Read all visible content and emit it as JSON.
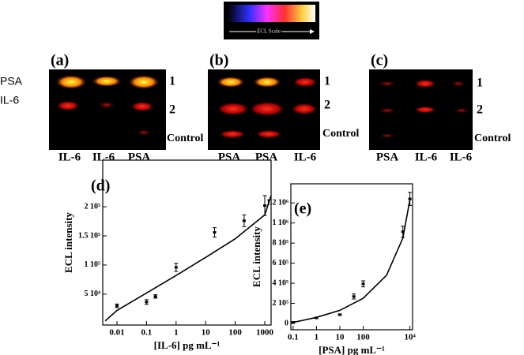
{
  "scale_label": "ECL Scale",
  "left_labels": [
    "PSA",
    "IL-6"
  ],
  "gels": [
    {
      "label": "(a)",
      "lanes": [
        "IL-6",
        "IL-6",
        "PSA"
      ],
      "rows": [
        "1",
        "2",
        "Control"
      ]
    },
    {
      "label": "(b)",
      "lanes": [
        "PSA",
        "PSA",
        "IL-6"
      ],
      "rows": [
        "1",
        "2",
        "Control"
      ]
    },
    {
      "label": "(c)",
      "lanes": [
        "PSA",
        "IL-6",
        "IL-6"
      ],
      "rows": [
        "1",
        "2",
        "Control"
      ]
    }
  ],
  "chart_data": [
    {
      "type": "scatter",
      "panel_label": "(d)",
      "x_label": "[IL-6] pg mL⁻¹",
      "y_label": "ECL intensity",
      "log_x": true,
      "xlim": [
        0.0033,
        1634
      ],
      "xticks": [
        0.01,
        0.1,
        1,
        10,
        100,
        1000
      ],
      "ylim": [
        -3000,
        280000
      ],
      "yticks": [
        {
          "value": 50000,
          "label": "5 10⁴"
        },
        {
          "value": 100000,
          "label": "1 10⁵"
        },
        {
          "value": 150000,
          "label": "1.5 10⁵"
        },
        {
          "value": 200000,
          "label": "2 10⁵"
        }
      ],
      "x": [
        0.01,
        0.1,
        0.2,
        1,
        20,
        200,
        1000
      ],
      "values": [
        30000,
        36500,
        46000,
        96000,
        156000,
        176000,
        202000
      ],
      "errors": [
        3000,
        4000,
        3000,
        7000,
        8000,
        10000,
        17000
      ],
      "fit": {
        "x": [
          0.004,
          0.01,
          0.1,
          1,
          10,
          100,
          1000,
          1634
        ],
        "values": [
          4000,
          22000,
          52000,
          82000,
          113000,
          145000,
          186000,
          219000
        ]
      },
      "color": "#000000"
    },
    {
      "type": "scatter",
      "panel_label": "(e)",
      "x_label": "[PSA] pg mL⁻¹",
      "y_label": "ECL intensity",
      "log_x": true,
      "xlim": [
        0.08,
        13000
      ],
      "xticks": [
        0.1,
        1,
        10,
        100,
        {
          "value": 10000,
          "label": "10⁴"
        }
      ],
      "ylim": [
        -63000,
        1390000
      ],
      "yticks": [
        0,
        {
          "value": 200000,
          "label": "2 10⁵"
        },
        {
          "value": 400000,
          "label": "4 10⁵"
        },
        {
          "value": 600000,
          "label": "6 10⁵"
        },
        {
          "value": 800000,
          "label": "8 10⁵"
        },
        {
          "value": 1000000,
          "label": "1 10⁶"
        },
        {
          "value": 1200000,
          "label": "1.2 10⁶"
        }
      ],
      "x": [
        0.1,
        1,
        10,
        40,
        100,
        5000,
        10000
      ],
      "values": [
        10000,
        55000,
        87000,
        268000,
        394000,
        913000,
        1240000
      ],
      "errors": [
        8000,
        8000,
        8000,
        25000,
        30000,
        55000,
        65000
      ],
      "fit": {
        "x": [
          0.1,
          1,
          10,
          100,
          1000,
          5000,
          10000
        ],
        "values": [
          10000,
          60000,
          130000,
          250000,
          480000,
          850000,
          1230000
        ]
      },
      "color": "#000000"
    }
  ]
}
